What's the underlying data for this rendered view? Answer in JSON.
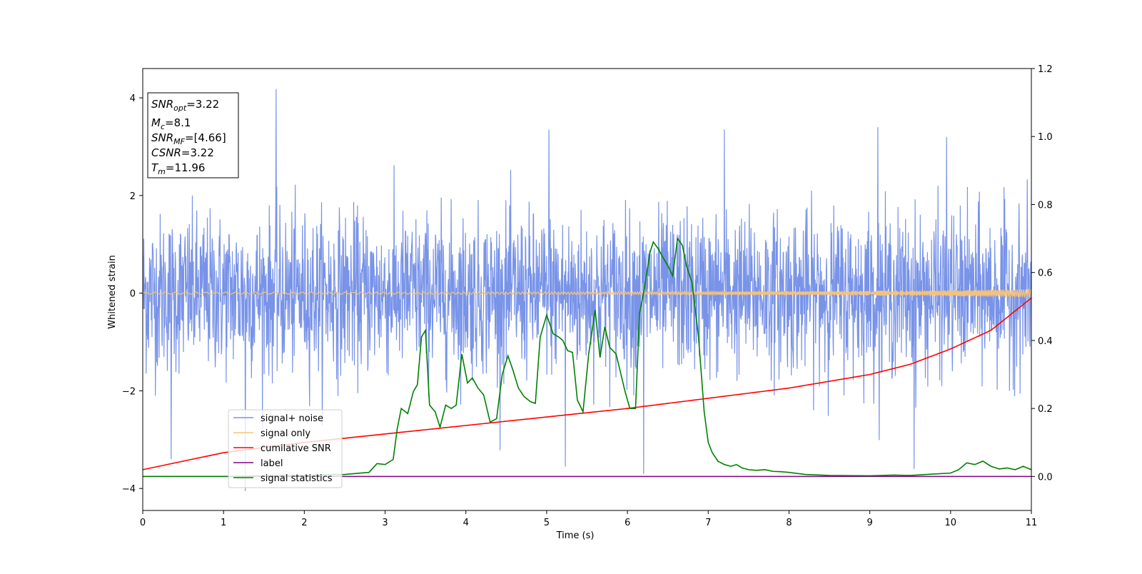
{
  "chart_data": {
    "type": "line",
    "xlabel": "Time (s)",
    "ylabel": "Whitened strain",
    "xlim": [
      0,
      11
    ],
    "ylim_left": [
      -4.45,
      4.6
    ],
    "ylim_right": [
      -0.1,
      1.2
    ],
    "x_ticks": [
      "0",
      "1",
      "2",
      "3",
      "4",
      "5",
      "6",
      "7",
      "8",
      "9",
      "10",
      "11"
    ],
    "y_left_ticks": [
      "4",
      "2",
      "0",
      "−2",
      "−4"
    ],
    "y_right_ticks": [
      "1.2",
      "1.0",
      "0.8",
      "0.6",
      "0.4",
      "0.2",
      "0.0"
    ],
    "info_box": {
      "snr_opt": {
        "main": "SNR",
        "sub": "opt",
        "value": "=3.22"
      },
      "mc": {
        "main": "M",
        "sub": "c",
        "value": "=8.1"
      },
      "snr_mf": {
        "main": "SNR",
        "sub": "MF",
        "value": "=[4.66]"
      },
      "csnr": {
        "main": "CSNR",
        "sub": "",
        "value": "=3.22"
      },
      "tm": {
        "main": "T",
        "sub": "m",
        "value": "=11.96"
      }
    },
    "legend": {
      "placement": "lower-left",
      "items": [
        {
          "label": "signal+ noise",
          "color": "#7893e8"
        },
        {
          "label": "signal only",
          "color": "#f5c27a"
        },
        {
          "label": "cumilative SNR",
          "color": "#ff0000"
        },
        {
          "label": "label",
          "color": "#800080"
        },
        {
          "label": "signal statistics",
          "color": "#008000"
        }
      ]
    },
    "series": [
      {
        "name": "signal+ noise",
        "axis": "left",
        "color": "#7893e8",
        "description": "whitened noisy strain, approx. std 0.8, range about -4.05 to 4.18",
        "std": 0.8,
        "spikes": [
          [
            1.65,
            4.18
          ],
          [
            1.27,
            -4.05
          ],
          [
            6.2,
            -3.7
          ],
          [
            0.35,
            -3.4
          ],
          [
            9.55,
            -3.6
          ],
          [
            5.23,
            -3.55
          ],
          [
            9.95,
            3.2
          ],
          [
            9.1,
            3.4
          ],
          [
            5.03,
            3.35
          ],
          [
            7.2,
            3.35
          ]
        ]
      },
      {
        "name": "signal only",
        "axis": "left",
        "color": "#f5c27a",
        "description": "chirp signal, amplitude near 0.02 growing to about 0.08 at t=11"
      },
      {
        "name": "cumilative SNR",
        "axis": "right",
        "color": "#ff0000",
        "x": [
          0,
          1,
          2,
          3,
          4,
          5,
          6,
          7,
          8,
          9,
          9.5,
          10,
          10.5,
          11
        ],
        "values": [
          0.02,
          0.07,
          0.1,
          0.125,
          0.15,
          0.175,
          0.2,
          0.23,
          0.26,
          0.3,
          0.33,
          0.375,
          0.43,
          0.525
        ]
      },
      {
        "name": "label",
        "axis": "right",
        "color": "#800080",
        "x": [
          0,
          11
        ],
        "values": [
          0.0,
          0.0
        ]
      },
      {
        "name": "signal statistics",
        "axis": "right",
        "color": "#008000",
        "x": [
          0,
          1,
          2,
          2.5,
          2.8,
          2.9,
          3.0,
          3.1,
          3.15,
          3.2,
          3.28,
          3.35,
          3.4,
          3.45,
          3.5,
          3.55,
          3.62,
          3.68,
          3.75,
          3.82,
          3.88,
          3.95,
          4.02,
          4.08,
          4.15,
          4.22,
          4.3,
          4.38,
          4.45,
          4.52,
          4.58,
          4.65,
          4.72,
          4.8,
          4.86,
          4.92,
          5.0,
          5.08,
          5.15,
          5.2,
          5.26,
          5.32,
          5.38,
          5.45,
          5.52,
          5.6,
          5.66,
          5.72,
          5.78,
          5.86,
          5.92,
          5.97,
          6.03,
          6.1,
          6.15,
          6.2,
          6.28,
          6.32,
          6.38,
          6.45,
          6.5,
          6.56,
          6.62,
          6.68,
          6.73,
          6.8,
          6.88,
          6.95,
          7.0,
          7.05,
          7.12,
          7.2,
          7.28,
          7.35,
          7.42,
          7.5,
          7.6,
          7.7,
          7.8,
          7.9,
          8.0,
          8.2,
          8.5,
          9.0,
          9.3,
          9.5,
          9.7,
          10.0,
          10.1,
          10.2,
          10.3,
          10.4,
          10.5,
          10.6,
          10.7,
          10.8,
          10.9,
          11.0
        ],
        "values": [
          0.0,
          0.0,
          0.003,
          0.006,
          0.012,
          0.038,
          0.035,
          0.05,
          0.14,
          0.2,
          0.185,
          0.25,
          0.27,
          0.41,
          0.43,
          0.21,
          0.19,
          0.145,
          0.21,
          0.2,
          0.21,
          0.36,
          0.275,
          0.29,
          0.26,
          0.24,
          0.16,
          0.17,
          0.3,
          0.355,
          0.315,
          0.26,
          0.235,
          0.22,
          0.215,
          0.41,
          0.475,
          0.42,
          0.41,
          0.4,
          0.37,
          0.365,
          0.225,
          0.19,
          0.36,
          0.49,
          0.35,
          0.44,
          0.38,
          0.36,
          0.3,
          0.25,
          0.2,
          0.2,
          0.48,
          0.54,
          0.66,
          0.69,
          0.67,
          0.64,
          0.62,
          0.59,
          0.7,
          0.68,
          0.62,
          0.57,
          0.41,
          0.19,
          0.1,
          0.07,
          0.045,
          0.035,
          0.03,
          0.035,
          0.025,
          0.02,
          0.018,
          0.02,
          0.015,
          0.014,
          0.012,
          0.006,
          0.003,
          0.002,
          0.004,
          0.003,
          0.006,
          0.01,
          0.02,
          0.04,
          0.035,
          0.045,
          0.03,
          0.022,
          0.025,
          0.02,
          0.03,
          0.02
        ]
      }
    ]
  }
}
